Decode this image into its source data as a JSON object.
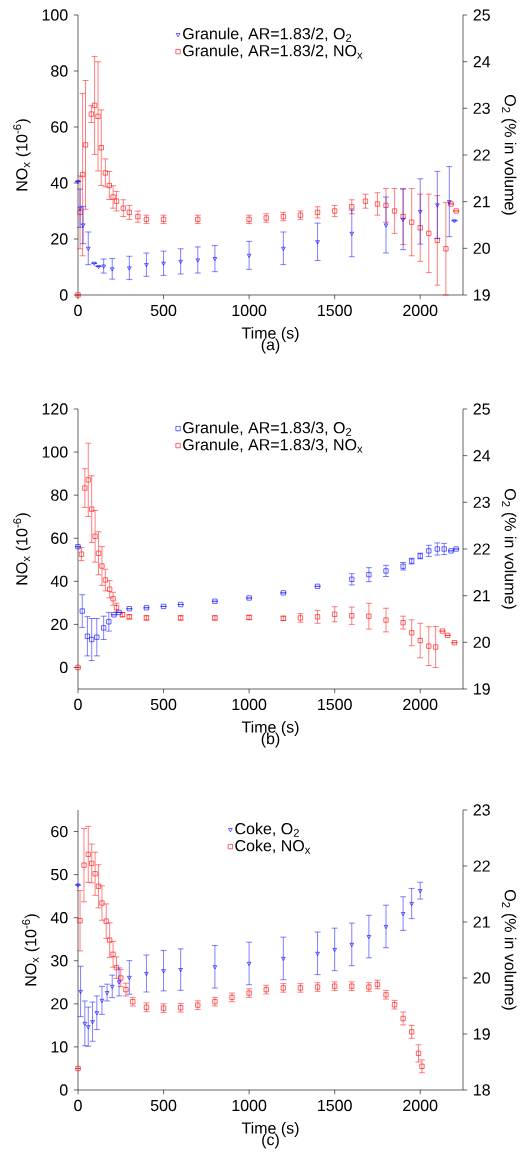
{
  "chart_data": [
    {
      "type": "scatter",
      "title": "(a)",
      "xlabel": "Time (s)",
      "ylabel": "NO$_{x}$ (10$^{-6}$)",
      "y2label": "O$_{2}$ (% in volume)",
      "legend": "top",
      "xlim": [
        0,
        2250
      ],
      "xticks": [
        0,
        500,
        1000,
        1500,
        2000
      ],
      "ylim": [
        0,
        100
      ],
      "yticks": [
        0,
        20,
        40,
        60,
        80,
        100
      ],
      "y2lim": [
        19,
        25
      ],
      "y2ticks": [
        19,
        20,
        21,
        22,
        23,
        24,
        25
      ],
      "series": [
        {
          "name": "Granule, AR=1.83/2, O$_{2}$",
          "color": "#0000ff",
          "marker": "triangle",
          "axis": "y2",
          "x": [
            0,
            12,
            30,
            60,
            95,
            120,
            150,
            200,
            300,
            400,
            500,
            600,
            700,
            800,
            1000,
            1200,
            1400,
            1600,
            1800,
            1900,
            2000,
            2100,
            2170,
            2200
          ],
          "values": [
            21.43,
            20.86,
            20.5,
            20.0,
            19.68,
            19.61,
            19.62,
            19.56,
            19.58,
            19.65,
            19.68,
            19.72,
            19.75,
            19.78,
            19.85,
            20.0,
            20.14,
            20.32,
            20.5,
            20.62,
            20.79,
            20.93,
            21.0,
            20.59
          ],
          "errors": [
            null,
            0.41,
            0.4,
            0.35,
            null,
            null,
            0.15,
            0.22,
            0.25,
            0.25,
            0.26,
            0.27,
            0.28,
            0.28,
            0.3,
            0.35,
            0.4,
            0.5,
            0.6,
            0.65,
            0.7,
            0.72,
            0.75,
            null
          ]
        },
        {
          "name": "Granule, AR=1.83/2, NO$_{x}$",
          "color": "#ff0000",
          "marker": "square",
          "axis": "y",
          "x": [
            0,
            12,
            27,
            44,
            78,
            97,
            117,
            136,
            160,
            183,
            205,
            225,
            265,
            300,
            350,
            400,
            500,
            700,
            1000,
            1100,
            1200,
            1300,
            1400,
            1500,
            1600,
            1680,
            1750,
            1800,
            1850,
            1900,
            1950,
            2000,
            2050,
            2100,
            2150,
            2180,
            2210
          ],
          "values": [
            0,
            29.5,
            43,
            53.6,
            64.6,
            67.7,
            63.8,
            52.6,
            43.6,
            39.1,
            35,
            33.5,
            31,
            29.5,
            28,
            27,
            27,
            27,
            27,
            27.5,
            28,
            28.5,
            29.5,
            30,
            31.5,
            33.5,
            32.5,
            32,
            30,
            28,
            26,
            24,
            22,
            19.5,
            16.5,
            32.5,
            30
          ],
          "errors": [
            null,
            13,
            29,
            23,
            3,
            17.5,
            19.5,
            13.5,
            5,
            5,
            4,
            3.5,
            3,
            2.5,
            2,
            1.5,
            1.5,
            1.5,
            1.5,
            1.5,
            1.5,
            1.5,
            2,
            2,
            2.5,
            2.5,
            4,
            6,
            8,
            10,
            12,
            12,
            14,
            16,
            16.5,
            null,
            null
          ]
        }
      ]
    },
    {
      "type": "scatter",
      "title": "(b)",
      "xlabel": "Time (s)",
      "ylabel": "NO$_{x}$ (10$^{-6}$)",
      "y2label": "O$_{2}$ (% in volume)",
      "legend": "top",
      "xlim": [
        0,
        2250
      ],
      "xticks": [
        0,
        500,
        1000,
        1500,
        2000
      ],
      "ylim": [
        -10,
        120
      ],
      "yticks": [
        0,
        20,
        40,
        60,
        80,
        100,
        120
      ],
      "y2lim": [
        19,
        25
      ],
      "y2ticks": [
        19,
        20,
        21,
        22,
        23,
        24,
        25
      ],
      "series": [
        {
          "name": "Granule, AR=1.83/3, O$_{2}$",
          "color": "#0000ff",
          "marker": "square",
          "axis": "y2",
          "x": [
            0,
            25,
            55,
            80,
            110,
            150,
            180,
            210,
            240,
            300,
            400,
            500,
            600,
            800,
            1000,
            1200,
            1400,
            1600,
            1700,
            1800,
            1900,
            1950,
            2000,
            2050,
            2100,
            2140,
            2180,
            2210
          ],
          "values": [
            22.05,
            20.67,
            20.13,
            20.06,
            20.11,
            20.31,
            20.44,
            20.59,
            20.64,
            20.72,
            20.74,
            20.77,
            20.81,
            20.88,
            20.95,
            21.06,
            21.2,
            21.35,
            21.45,
            21.53,
            21.63,
            21.74,
            21.85,
            21.96,
            22.0,
            22.0,
            21.96,
            22.0
          ],
          "errors": [
            null,
            0.35,
            0.42,
            0.45,
            0.4,
            0.25,
            0.2,
            null,
            null,
            null,
            null,
            null,
            null,
            null,
            null,
            null,
            null,
            0.12,
            0.15,
            0.12,
            0.08,
            0.06,
            0.06,
            0.12,
            0.13,
            0.12,
            null,
            null
          ]
        },
        {
          "name": "Granule, AR=1.83/3, NO$_{x}$",
          "color": "#ff0000",
          "marker": "square",
          "axis": "y",
          "x": [
            0,
            20,
            40,
            60,
            80,
            100,
            120,
            140,
            160,
            185,
            205,
            225,
            260,
            300,
            400,
            600,
            800,
            1000,
            1200,
            1300,
            1400,
            1500,
            1600,
            1700,
            1800,
            1900,
            1950,
            2000,
            2050,
            2090,
            2130,
            2160,
            2200
          ],
          "values": [
            0,
            52.6,
            83.3,
            87.1,
            73.5,
            60.9,
            53,
            47.1,
            40.6,
            36.3,
            31.9,
            27.8,
            24.5,
            23.5,
            23,
            23,
            23,
            23.2,
            22.8,
            23,
            23.5,
            24.7,
            24,
            23.8,
            22,
            20.8,
            16.1,
            12.5,
            9.9,
            9.5,
            16.9,
            14.9,
            11.5
          ],
          "errors": [
            null,
            3,
            9,
            17,
            15.5,
            12,
            10,
            9,
            5,
            4,
            3,
            2,
            1,
            1,
            1,
            1,
            1,
            1,
            1,
            2,
            3,
            3.5,
            4,
            6,
            5.5,
            3,
            6,
            8,
            9,
            9.5,
            null,
            null,
            null
          ]
        }
      ]
    },
    {
      "type": "scatter",
      "title": "(c)",
      "xlabel": "Time (s)",
      "ylabel": "NO$_{x}$ (10$^{-6}$)",
      "y2label": "O$_{2}$ (% in volume)",
      "legend": "top",
      "xlim": [
        0,
        2250
      ],
      "xticks": [
        0,
        500,
        1000,
        1500,
        2000
      ],
      "ylim": [
        0,
        65
      ],
      "yticks": [
        0,
        10,
        20,
        30,
        40,
        50,
        60
      ],
      "y2lim": [
        18,
        23
      ],
      "y2ticks": [
        18,
        19,
        20,
        21,
        22,
        23
      ],
      "series": [
        {
          "name": "Coke, O$_{2}$",
          "color": "#0000ff",
          "marker": "triangle",
          "axis": "y2",
          "x": [
            0,
            15,
            40,
            60,
            85,
            110,
            140,
            170,
            200,
            240,
            300,
            400,
            500,
            600,
            800,
            1000,
            1200,
            1400,
            1500,
            1600,
            1700,
            1800,
            1900,
            1950,
            2000
          ],
          "values": [
            21.66,
            19.76,
            19.19,
            19.13,
            19.22,
            19.38,
            19.6,
            19.74,
            19.85,
            19.93,
            20.01,
            20.08,
            20.13,
            20.15,
            20.2,
            20.26,
            20.35,
            20.44,
            20.51,
            20.6,
            20.74,
            20.92,
            21.15,
            21.33,
            21.56
          ],
          "errors": [
            null,
            0.45,
            0.4,
            0.35,
            0.35,
            0.3,
            0.25,
            0.15,
            0.2,
            0.25,
            0.3,
            0.33,
            0.36,
            0.37,
            0.38,
            0.38,
            0.38,
            0.38,
            0.38,
            0.38,
            0.38,
            0.38,
            0.3,
            0.27,
            0.15
          ]
        },
        {
          "name": "Coke, NO$_{x}$",
          "color": "#ff0000",
          "marker": "square",
          "axis": "y",
          "x": [
            0,
            12,
            35,
            60,
            80,
            100,
            120,
            140,
            165,
            185,
            205,
            225,
            250,
            280,
            320,
            400,
            500,
            600,
            700,
            800,
            900,
            1000,
            1100,
            1200,
            1300,
            1400,
            1500,
            1600,
            1700,
            1750,
            1800,
            1850,
            1900,
            1950,
            1990,
            2010
          ],
          "values": [
            5,
            39.3,
            52.2,
            54.7,
            52.6,
            50.2,
            47.3,
            43.4,
            39.2,
            34.8,
            31.5,
            28.4,
            26,
            23.3,
            20.5,
            19.2,
            19,
            19.1,
            19.7,
            20.5,
            21.5,
            22.5,
            23.3,
            23.7,
            23.7,
            23.9,
            24.1,
            24.1,
            23.9,
            24.5,
            22.1,
            19.8,
            16.6,
            13.5,
            8.5,
            5.5
          ],
          "errors": [
            null,
            7,
            8.5,
            6.5,
            4.5,
            5,
            5,
            4,
            4,
            4,
            3,
            2.5,
            2,
            1.5,
            1,
            1,
            1,
            1,
            1,
            1,
            1,
            1,
            1,
            1,
            1,
            1,
            1,
            1,
            1,
            1,
            1,
            1,
            1.5,
            1.5,
            2,
            1.5
          ]
        }
      ]
    }
  ]
}
